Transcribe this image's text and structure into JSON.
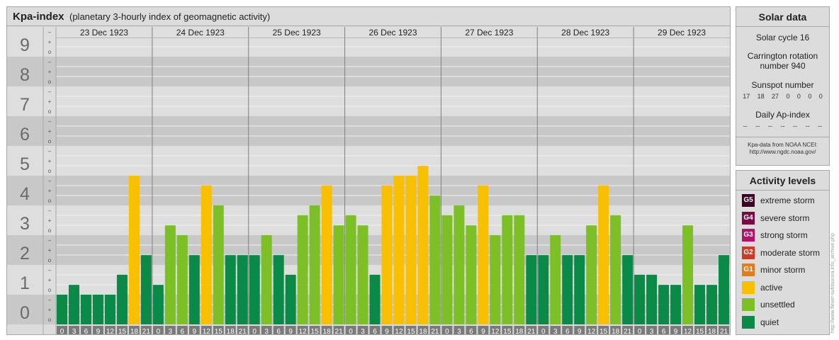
{
  "header": {
    "title": "Kpa-index",
    "subtitle": "(planetary 3-hourly index of geomagnetic activity)"
  },
  "chart_data": {
    "type": "bar",
    "ylim": [
      0,
      9
    ],
    "y_ticks": [
      "0",
      "1",
      "2",
      "3",
      "4",
      "5",
      "6",
      "7",
      "8",
      "9"
    ],
    "sub_ticks": [
      "o",
      "+",
      "–"
    ],
    "days": [
      "23 Dec 1923",
      "24 Dec 1923",
      "25 Dec 1923",
      "26 Dec 1923",
      "27 Dec 1923",
      "28 Dec 1923",
      "29 Dec 1923"
    ],
    "interval_top": [
      "0",
      "3",
      "6",
      "9",
      "12",
      "15",
      "18",
      "21"
    ],
    "interval_bottom": [
      "3",
      "6",
      "9",
      "12",
      "15",
      "18",
      "21",
      "24"
    ],
    "series": [
      {
        "values": [
          0.0,
          0.33,
          0.0,
          0.0,
          0.0,
          0.67,
          4.0,
          1.33,
          0.33,
          2.33,
          2.0,
          1.33,
          3.67,
          3.0,
          1.33,
          1.33,
          1.33,
          2.0,
          1.33,
          0.67,
          2.67,
          3.0,
          3.67,
          2.33,
          2.67,
          2.33,
          0.67,
          3.67,
          4.0,
          4.0,
          4.33,
          3.33,
          2.67,
          3.0,
          2.33,
          3.67,
          2.0,
          2.67,
          2.67,
          1.33,
          1.33,
          2.0,
          1.33,
          1.33,
          2.33,
          3.67,
          2.67,
          1.33,
          0.67,
          0.67,
          0.33,
          0.33,
          2.33,
          0.33,
          0.33,
          1.33
        ]
      }
    ],
    "level_colors": {
      "quiet": "#0a8a46",
      "unsettled": "#7cbf27",
      "active": "#f8c000"
    }
  },
  "solar": {
    "title": "Solar data",
    "cycle": "Solar cycle 16",
    "carrington_line1": "Carrington rotation",
    "carrington_line2": "number 940",
    "sunspot_label": "Sunspot number",
    "sunspot_values": [
      "17",
      "18",
      "27",
      "0",
      "0",
      "0",
      "0"
    ],
    "ap_label": "Daily Ap-index",
    "ap_values": [
      "--",
      "--",
      "--",
      "--",
      "--",
      "--",
      "--"
    ],
    "source_line1": "Kpa-data from NOAA NCEI:",
    "source_line2": "http://www.ngdc.noaa.gov/"
  },
  "levels": {
    "title": "Activity levels",
    "items": [
      {
        "code": "G5",
        "label": "extreme storm",
        "color": "#3d0024"
      },
      {
        "code": "G4",
        "label": "severe storm",
        "color": "#7a0a46"
      },
      {
        "code": "G3",
        "label": "strong storm",
        "color": "#b0136a"
      },
      {
        "code": "G2",
        "label": "moderate storm",
        "color": "#cf3a26"
      },
      {
        "code": "G1",
        "label": "minor storm",
        "color": "#e57b1c"
      },
      {
        "code": "",
        "label": "active",
        "color": "#f8c000"
      },
      {
        "code": "",
        "label": "unsettled",
        "color": "#7cbf27"
      },
      {
        "code": "",
        "label": "quiet",
        "color": "#0a8a46"
      }
    ]
  },
  "credit": "http://www.fleuer-sufriaurora.info_archive.php"
}
